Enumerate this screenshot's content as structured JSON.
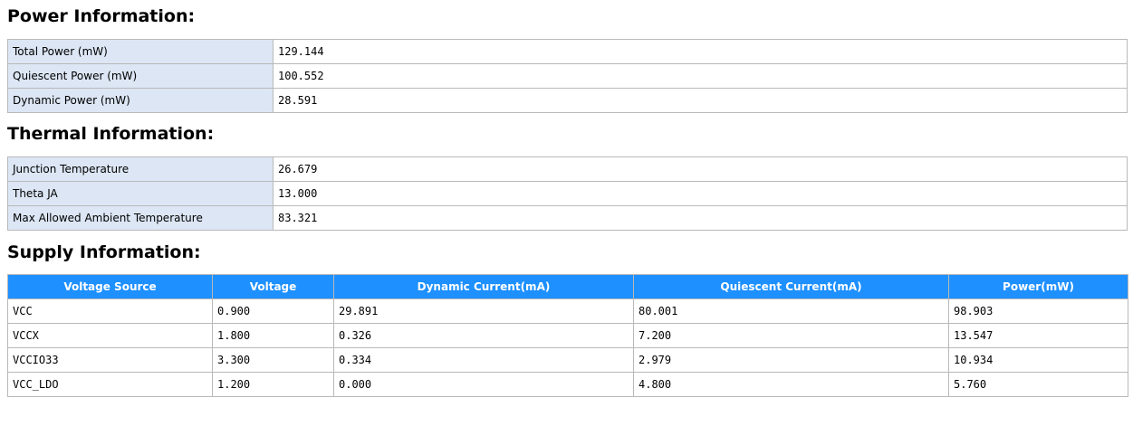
{
  "power": {
    "title": "Power Information:",
    "rows": [
      {
        "label": "Total Power (mW)",
        "value": "129.144"
      },
      {
        "label": "Quiescent Power (mW)",
        "value": "100.552"
      },
      {
        "label": "Dynamic Power (mW)",
        "value": "28.591"
      }
    ]
  },
  "thermal": {
    "title": "Thermal Information:",
    "rows": [
      {
        "label": "Junction Temperature",
        "value": "26.679"
      },
      {
        "label": "Theta JA",
        "value": "13.000"
      },
      {
        "label": "Max Allowed Ambient Temperature",
        "value": "83.321"
      }
    ]
  },
  "supply": {
    "title": "Supply Information:",
    "headers": [
      "Voltage Source",
      "Voltage",
      "Dynamic Current(mA)",
      "Quiescent Current(mA)",
      "Power(mW)"
    ],
    "rows": [
      [
        "VCC",
        "0.900",
        "29.891",
        "80.001",
        "98.903"
      ],
      [
        "VCCX",
        "1.800",
        "0.326",
        "7.200",
        "13.547"
      ],
      [
        "VCCIO33",
        "3.300",
        "0.334",
        "2.979",
        "10.934"
      ],
      [
        "VCC_LDO",
        "1.200",
        "0.000",
        "4.800",
        "5.760"
      ]
    ]
  },
  "colors": {
    "header_bg": "#1e90ff",
    "key_cell_bg": "#dce6f4",
    "border": "#b9b9b9"
  }
}
